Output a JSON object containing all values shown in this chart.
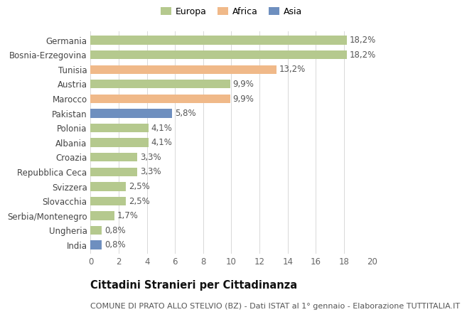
{
  "categories": [
    "Germania",
    "Bosnia-Erzegovina",
    "Tunisia",
    "Austria",
    "Marocco",
    "Pakistan",
    "Polonia",
    "Albania",
    "Croazia",
    "Repubblica Ceca",
    "Svizzera",
    "Slovacchia",
    "Serbia/Montenegro",
    "Ungheria",
    "India"
  ],
  "values": [
    18.2,
    18.2,
    13.2,
    9.9,
    9.9,
    5.8,
    4.1,
    4.1,
    3.3,
    3.3,
    2.5,
    2.5,
    1.7,
    0.8,
    0.8
  ],
  "labels": [
    "18,2%",
    "18,2%",
    "13,2%",
    "9,9%",
    "9,9%",
    "5,8%",
    "4,1%",
    "4,1%",
    "3,3%",
    "3,3%",
    "2,5%",
    "2,5%",
    "1,7%",
    "0,8%",
    "0,8%"
  ],
  "continents": [
    "Europa",
    "Europa",
    "Africa",
    "Europa",
    "Africa",
    "Asia",
    "Europa",
    "Europa",
    "Europa",
    "Europa",
    "Europa",
    "Europa",
    "Europa",
    "Europa",
    "Asia"
  ],
  "colors": {
    "Europa": "#b5c98e",
    "Africa": "#f0b989",
    "Asia": "#6e8fbf"
  },
  "legend_order": [
    "Europa",
    "Africa",
    "Asia"
  ],
  "xlim": [
    0,
    20
  ],
  "xticks": [
    0,
    2,
    4,
    6,
    8,
    10,
    12,
    14,
    16,
    18,
    20
  ],
  "title": "Cittadini Stranieri per Cittadinanza",
  "subtitle": "COMUNE DI PRATO ALLO STELVIO (BZ) - Dati ISTAT al 1° gennaio - Elaborazione TUTTITALIA.IT",
  "bg_color": "#ffffff",
  "grid_color": "#d8d8d8",
  "bar_height": 0.6,
  "label_fontsize": 8.5,
  "tick_fontsize": 8.5,
  "title_fontsize": 10.5,
  "subtitle_fontsize": 8
}
